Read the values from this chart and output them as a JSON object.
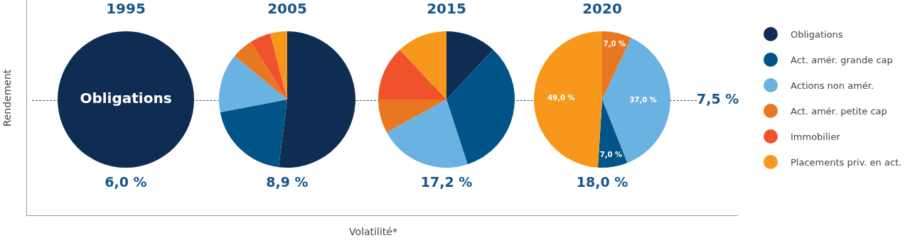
{
  "chart_data": [
    {
      "type": "pie",
      "title": "1995",
      "ylabel": "Rendement",
      "categories": [
        "Obligations"
      ],
      "values": [
        100
      ],
      "colors": [
        "#0f2d52"
      ],
      "annotations": [
        "6,0 %"
      ]
    },
    {
      "type": "pie",
      "title": "2005",
      "xlabel": "Volatilité*",
      "legend": "right",
      "categories": [
        "Obligations",
        "Act. amér. grande cap",
        "Actions non amér.",
        "Act. amér. petite cap",
        "Immobilier",
        "Placements priv. en act."
      ],
      "values": [
        52,
        20,
        14,
        5,
        5,
        4
      ],
      "colors": [
        "#0f2d52",
        "#005487",
        "#6ab2e1",
        "#e87722",
        "#f0532b",
        "#f7981d"
      ],
      "annotations": [
        "8,9 %"
      ]
    },
    {
      "type": "pie",
      "title": "2015",
      "categories": [
        null,
        null,
        null,
        null,
        null,
        null
      ],
      "values": [
        12,
        33,
        22,
        8,
        13,
        12
      ],
      "colors": [
        "#0f2d52",
        "#005487",
        "#6ab2e1",
        "#e87722",
        "#f0532b",
        "#f7981d"
      ],
      "annotations": [
        "17,2 %"
      ]
    },
    {
      "type": "pie",
      "title": "2020",
      "categories": [
        null,
        null,
        null,
        null
      ],
      "values": [
        7,
        37,
        7,
        49
      ],
      "colors": [
        "#e87722",
        "#6ab2e1",
        "#005487",
        "#f7981d"
      ],
      "value_labels": [
        "7,0 %",
        "37,0 %",
        "7,0 %",
        "49,0 %"
      ],
      "annotations": [
        "18,0 %",
        "7,5 %"
      ]
    }
  ]
}
